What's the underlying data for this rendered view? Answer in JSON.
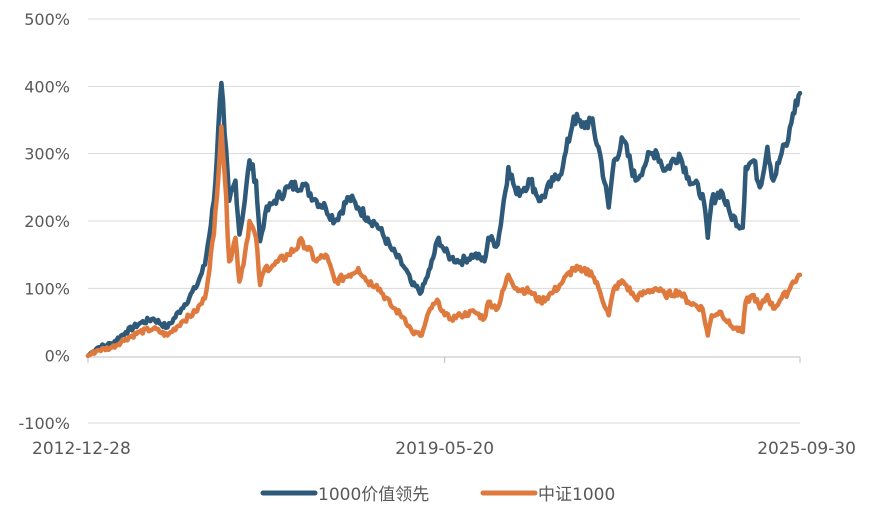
{
  "chart_data": {
    "type": "line",
    "title": "",
    "xlabel": "",
    "ylabel": "",
    "x_tick_labels": [
      "2012-12-28",
      "2019-05-20",
      "2025-09-30"
    ],
    "y_tick_labels": [
      "500%",
      "400%",
      "300%",
      "200%",
      "100%",
      "0%",
      "-100%"
    ],
    "ylim": [
      -100,
      500
    ],
    "x_range": [
      "2012-12-28",
      "2025-09-30"
    ],
    "grid": true,
    "legend_position": "bottom",
    "series": [
      {
        "name": "1000价值领先",
        "color": "#2E5979",
        "points": [
          [
            "2012-12-28",
            0
          ],
          [
            "2013-03-01",
            12
          ],
          [
            "2013-06-01",
            18
          ],
          [
            "2013-09-01",
            35
          ],
          [
            "2013-12-01",
            48
          ],
          [
            "2014-03-01",
            55
          ],
          [
            "2014-06-01",
            42
          ],
          [
            "2014-09-01",
            70
          ],
          [
            "2014-12-01",
            100
          ],
          [
            "2015-02-01",
            135
          ],
          [
            "2015-04-01",
            230
          ],
          [
            "2015-05-20",
            405
          ],
          [
            "2015-06-10",
            330
          ],
          [
            "2015-07-10",
            230
          ],
          [
            "2015-08-20",
            260
          ],
          [
            "2015-09-15",
            180
          ],
          [
            "2015-10-20",
            230
          ],
          [
            "2015-11-20",
            290
          ],
          [
            "2016-01-01",
            260
          ],
          [
            "2016-01-28",
            170
          ],
          [
            "2016-03-01",
            210
          ],
          [
            "2016-05-01",
            230
          ],
          [
            "2016-08-01",
            250
          ],
          [
            "2016-11-01",
            255
          ],
          [
            "2017-02-01",
            230
          ],
          [
            "2017-04-01",
            220
          ],
          [
            "2017-06-01",
            200
          ],
          [
            "2017-09-01",
            235
          ],
          [
            "2017-11-01",
            220
          ],
          [
            "2018-01-01",
            205
          ],
          [
            "2018-03-01",
            195
          ],
          [
            "2018-06-01",
            160
          ],
          [
            "2018-09-01",
            130
          ],
          [
            "2018-10-20",
            105
          ],
          [
            "2018-12-20",
            95
          ],
          [
            "2019-02-15",
            130
          ],
          [
            "2019-04-10",
            175
          ],
          [
            "2019-05-20",
            155
          ],
          [
            "2019-07-01",
            145
          ],
          [
            "2019-09-01",
            140
          ],
          [
            "2019-12-01",
            150
          ],
          [
            "2020-02-04",
            140
          ],
          [
            "2020-03-01",
            175
          ],
          [
            "2020-05-01",
            165
          ],
          [
            "2020-07-10",
            280
          ],
          [
            "2020-09-01",
            240
          ],
          [
            "2020-12-01",
            260
          ],
          [
            "2021-02-05",
            230
          ],
          [
            "2021-05-01",
            260
          ],
          [
            "2021-07-01",
            280
          ],
          [
            "2021-09-10",
            355
          ],
          [
            "2021-11-01",
            340
          ],
          [
            "2022-01-01",
            350
          ],
          [
            "2022-03-01",
            300
          ],
          [
            "2022-04-27",
            220
          ],
          [
            "2022-06-01",
            290
          ],
          [
            "2022-08-01",
            320
          ],
          [
            "2022-10-20",
            260
          ],
          [
            "2023-01-01",
            290
          ],
          [
            "2023-03-01",
            305
          ],
          [
            "2023-05-01",
            275
          ],
          [
            "2023-08-01",
            300
          ],
          [
            "2023-10-01",
            265
          ],
          [
            "2024-01-01",
            240
          ],
          [
            "2024-02-05",
            175
          ],
          [
            "2024-03-01",
            230
          ],
          [
            "2024-05-01",
            245
          ],
          [
            "2024-07-01",
            210
          ],
          [
            "2024-09-20",
            190
          ],
          [
            "2024-10-10",
            280
          ],
          [
            "2024-12-01",
            290
          ],
          [
            "2025-01-10",
            250
          ],
          [
            "2025-03-01",
            310
          ],
          [
            "2025-04-08",
            260
          ],
          [
            "2025-06-01",
            300
          ],
          [
            "2025-07-15",
            320
          ],
          [
            "2025-08-15",
            360
          ],
          [
            "2025-09-30",
            390
          ]
        ]
      },
      {
        "name": "中证1000",
        "color": "#DE7A3E",
        "points": [
          [
            "2012-12-28",
            0
          ],
          [
            "2013-03-01",
            8
          ],
          [
            "2013-06-01",
            12
          ],
          [
            "2013-09-01",
            25
          ],
          [
            "2013-12-01",
            35
          ],
          [
            "2014-03-01",
            40
          ],
          [
            "2014-06-01",
            30
          ],
          [
            "2014-09-01",
            50
          ],
          [
            "2014-12-01",
            65
          ],
          [
            "2015-02-01",
            85
          ],
          [
            "2015-04-01",
            180
          ],
          [
            "2015-05-20",
            340
          ],
          [
            "2015-06-10",
            270
          ],
          [
            "2015-07-10",
            140
          ],
          [
            "2015-08-20",
            175
          ],
          [
            "2015-09-15",
            110
          ],
          [
            "2015-10-20",
            150
          ],
          [
            "2015-11-20",
            200
          ],
          [
            "2016-01-01",
            175
          ],
          [
            "2016-01-28",
            105
          ],
          [
            "2016-03-01",
            130
          ],
          [
            "2016-05-01",
            135
          ],
          [
            "2016-08-01",
            150
          ],
          [
            "2016-11-01",
            170
          ],
          [
            "2017-02-01",
            140
          ],
          [
            "2017-04-01",
            150
          ],
          [
            "2017-06-01",
            110
          ],
          [
            "2017-09-01",
            120
          ],
          [
            "2017-11-01",
            130
          ],
          [
            "2018-01-01",
            110
          ],
          [
            "2018-03-01",
            105
          ],
          [
            "2018-06-01",
            75
          ],
          [
            "2018-09-01",
            55
          ],
          [
            "2018-10-20",
            35
          ],
          [
            "2018-12-20",
            30
          ],
          [
            "2019-02-15",
            70
          ],
          [
            "2019-04-10",
            80
          ],
          [
            "2019-05-20",
            60
          ],
          [
            "2019-07-01",
            55
          ],
          [
            "2019-09-01",
            60
          ],
          [
            "2019-12-01",
            65
          ],
          [
            "2020-02-04",
            55
          ],
          [
            "2020-03-01",
            80
          ],
          [
            "2020-05-01",
            70
          ],
          [
            "2020-07-10",
            120
          ],
          [
            "2020-09-01",
            100
          ],
          [
            "2020-12-01",
            95
          ],
          [
            "2021-02-05",
            80
          ],
          [
            "2021-05-01",
            95
          ],
          [
            "2021-07-01",
            110
          ],
          [
            "2021-09-10",
            130
          ],
          [
            "2021-11-01",
            125
          ],
          [
            "2022-01-01",
            125
          ],
          [
            "2022-03-01",
            95
          ],
          [
            "2022-04-27",
            60
          ],
          [
            "2022-06-01",
            100
          ],
          [
            "2022-08-01",
            110
          ],
          [
            "2022-10-20",
            85
          ],
          [
            "2023-01-01",
            95
          ],
          [
            "2023-03-01",
            100
          ],
          [
            "2023-05-01",
            90
          ],
          [
            "2023-08-01",
            95
          ],
          [
            "2023-10-01",
            80
          ],
          [
            "2024-01-01",
            70
          ],
          [
            "2024-02-05",
            30
          ],
          [
            "2024-03-01",
            60
          ],
          [
            "2024-05-01",
            65
          ],
          [
            "2024-07-01",
            45
          ],
          [
            "2024-09-20",
            35
          ],
          [
            "2024-10-10",
            80
          ],
          [
            "2024-12-01",
            90
          ],
          [
            "2025-01-10",
            70
          ],
          [
            "2025-03-01",
            90
          ],
          [
            "2025-04-08",
            70
          ],
          [
            "2025-06-01",
            85
          ],
          [
            "2025-07-15",
            95
          ],
          [
            "2025-08-15",
            110
          ],
          [
            "2025-09-30",
            120
          ]
        ]
      }
    ]
  }
}
